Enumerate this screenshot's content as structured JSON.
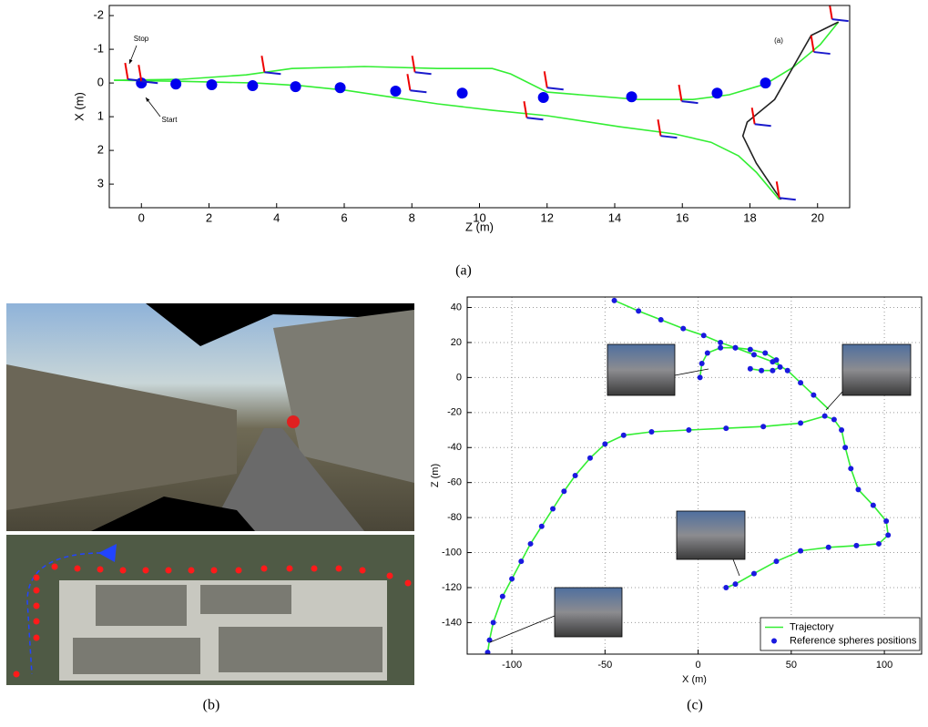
{
  "chart_data": [
    {
      "type": "line",
      "xlabel": "Z (m)",
      "ylabel": "X (m)",
      "xlim": [
        -0.95,
        20.95
      ],
      "ylim": [
        -2.3,
        3.7
      ],
      "y_inverted": true,
      "grid": false,
      "xticks": [
        0,
        2,
        4,
        6,
        8,
        10,
        12,
        14,
        16,
        18,
        20
      ],
      "yticks": [
        -2,
        -1,
        0,
        1,
        2,
        3
      ],
      "annotations": [
        "Stop",
        "Start",
        "(a)"
      ],
      "series": [
        {
          "color": "#33ee33",
          "x": [
            -0.81,
            1.21,
            3.1,
            4.45,
            6.6,
            8.76,
            10.38,
            10.92,
            12.0,
            14.69,
            16.31,
            17.39,
            18.46,
            19.27,
            20.08,
            20.62
          ],
          "values": [
            -0.08,
            -0.11,
            -0.24,
            -0.43,
            -0.49,
            -0.43,
            -0.43,
            -0.27,
            0.27,
            0.49,
            0.49,
            0.35,
            0.03,
            -0.46,
            -1.14,
            -1.81
          ]
        },
        {
          "color": "#33ee33",
          "x": [
            -0.81,
            1.21,
            3.37,
            4.72,
            6.06,
            7.14,
            8.76,
            10.38,
            12.0,
            14.16,
            15.77,
            16.85,
            17.66,
            18.19,
            18.6,
            18.87
          ],
          "values": [
            -0.08,
            -0.05,
            0,
            0.08,
            0.22,
            0.38,
            0.62,
            0.81,
            0.97,
            1.3,
            1.51,
            1.76,
            2.16,
            2.65,
            3.14,
            3.46
          ]
        },
        {
          "color": "#222222",
          "x": [
            20.62,
            19.81,
            19.27,
            18.73,
            17.92,
            17.79,
            18.19,
            18.73,
            18.92
          ],
          "values": [
            -1.81,
            -1.41,
            -0.46,
            0.49,
            1.16,
            1.57,
            2.38,
            3.19,
            3.46
          ]
        },
        {
          "type": "scatter",
          "color": "#0000ee",
          "marker_size": 6,
          "x": [
            0,
            1.02,
            2.08,
            3.29,
            4.56,
            5.88,
            7.52,
            9.49,
            11.89,
            14.5,
            17.03,
            18.46
          ],
          "values": [
            0,
            0.03,
            0.05,
            0.08,
            0.11,
            0.14,
            0.24,
            0.3,
            0.43,
            0.41,
            0.3,
            0
          ]
        },
        {
          "type": "pose",
          "color": "#ee0000",
          "x": [
            -0.4,
            0,
            3.64,
            7.95,
            8.09,
            11.4,
            12.0,
            15.36,
            15.98,
            18.14,
            19.89,
            20.43,
            18.87
          ],
          "values": [
            -0.11,
            -0.05,
            -0.32,
            0.22,
            -0.32,
            1.03,
            0.14,
            1.57,
            0.54,
            1.22,
            -0.92,
            -1.89,
            3.41
          ]
        }
      ]
    },
    {
      "type": "line",
      "xlabel": "X (m)",
      "ylabel": "Z (m)",
      "xlim": [
        -124,
        120
      ],
      "ylim": [
        -158,
        46
      ],
      "grid": true,
      "legend": "lower right",
      "xticks": [
        -100,
        -50,
        0,
        50,
        100
      ],
      "yticks": [
        -140,
        -120,
        -100,
        -80,
        -60,
        -40,
        -20,
        0,
        20,
        40
      ],
      "series": [
        {
          "name": "Trajectory",
          "color": "#33ee33",
          "x": [
            -113,
            -112,
            -110,
            -105,
            -100,
            -95,
            -90,
            -84,
            -78,
            -72,
            -66,
            -58,
            -50,
            -40,
            -25,
            -5,
            15,
            35,
            55,
            68,
            73,
            77,
            79,
            82,
            86,
            94,
            101,
            102,
            97,
            85,
            70,
            55,
            42,
            30,
            20,
            15,
            null,
            70,
            62,
            55,
            48,
            40,
            30,
            20,
            12,
            3,
            -8,
            -20,
            -32,
            -45,
            null,
            1,
            2,
            5,
            12,
            20,
            28,
            36,
            42,
            44,
            40,
            34,
            28
          ],
          "values": [
            -157,
            -150,
            -140,
            -125,
            -115,
            -105,
            -95,
            -85,
            -75,
            -65,
            -56,
            -46,
            -38,
            -33,
            -31,
            -30,
            -29,
            -28,
            -26,
            -22,
            -24,
            -30,
            -40,
            -52,
            -64,
            -73,
            -82,
            -90,
            -95,
            -96,
            -97,
            -99,
            -105,
            -112,
            -118,
            -120,
            null,
            -18,
            -10,
            -3,
            4,
            9,
            13,
            17,
            20,
            24,
            28,
            33,
            38,
            44,
            null,
            0,
            8,
            14,
            17,
            17,
            16,
            14,
            10,
            6,
            4,
            4,
            5
          ]
        },
        {
          "name": "Reference spheres positions",
          "type": "scatter",
          "color": "#1a1adf",
          "marker_size": 3,
          "x": [
            -113,
            -112,
            -110,
            -105,
            -100,
            -95,
            -90,
            -84,
            -78,
            -72,
            -66,
            -58,
            -50,
            -40,
            -25,
            -5,
            15,
            35,
            55,
            68,
            73,
            77,
            79,
            82,
            86,
            94,
            101,
            102,
            97,
            85,
            70,
            55,
            42,
            30,
            20,
            15,
            62,
            55,
            48,
            40,
            30,
            20,
            12,
            3,
            -8,
            -20,
            -32,
            -45,
            1,
            2,
            5,
            12,
            20,
            28,
            36,
            42,
            44,
            40,
            34,
            28
          ],
          "values": [
            -157,
            -150,
            -140,
            -125,
            -115,
            -105,
            -95,
            -85,
            -75,
            -65,
            -56,
            -46,
            -38,
            -33,
            -31,
            -30,
            -29,
            -28,
            -26,
            -22,
            -24,
            -30,
            -40,
            -52,
            -64,
            -73,
            -82,
            -90,
            -95,
            -96,
            -97,
            -99,
            -105,
            -112,
            -118,
            -120,
            -10,
            -3,
            4,
            9,
            13,
            17,
            20,
            24,
            28,
            33,
            38,
            44,
            0,
            8,
            14,
            17,
            17,
            16,
            14,
            10,
            6,
            4,
            4,
            5
          ]
        }
      ]
    }
  ],
  "captions": [
    "(a)",
    "(b)",
    "(c)"
  ]
}
